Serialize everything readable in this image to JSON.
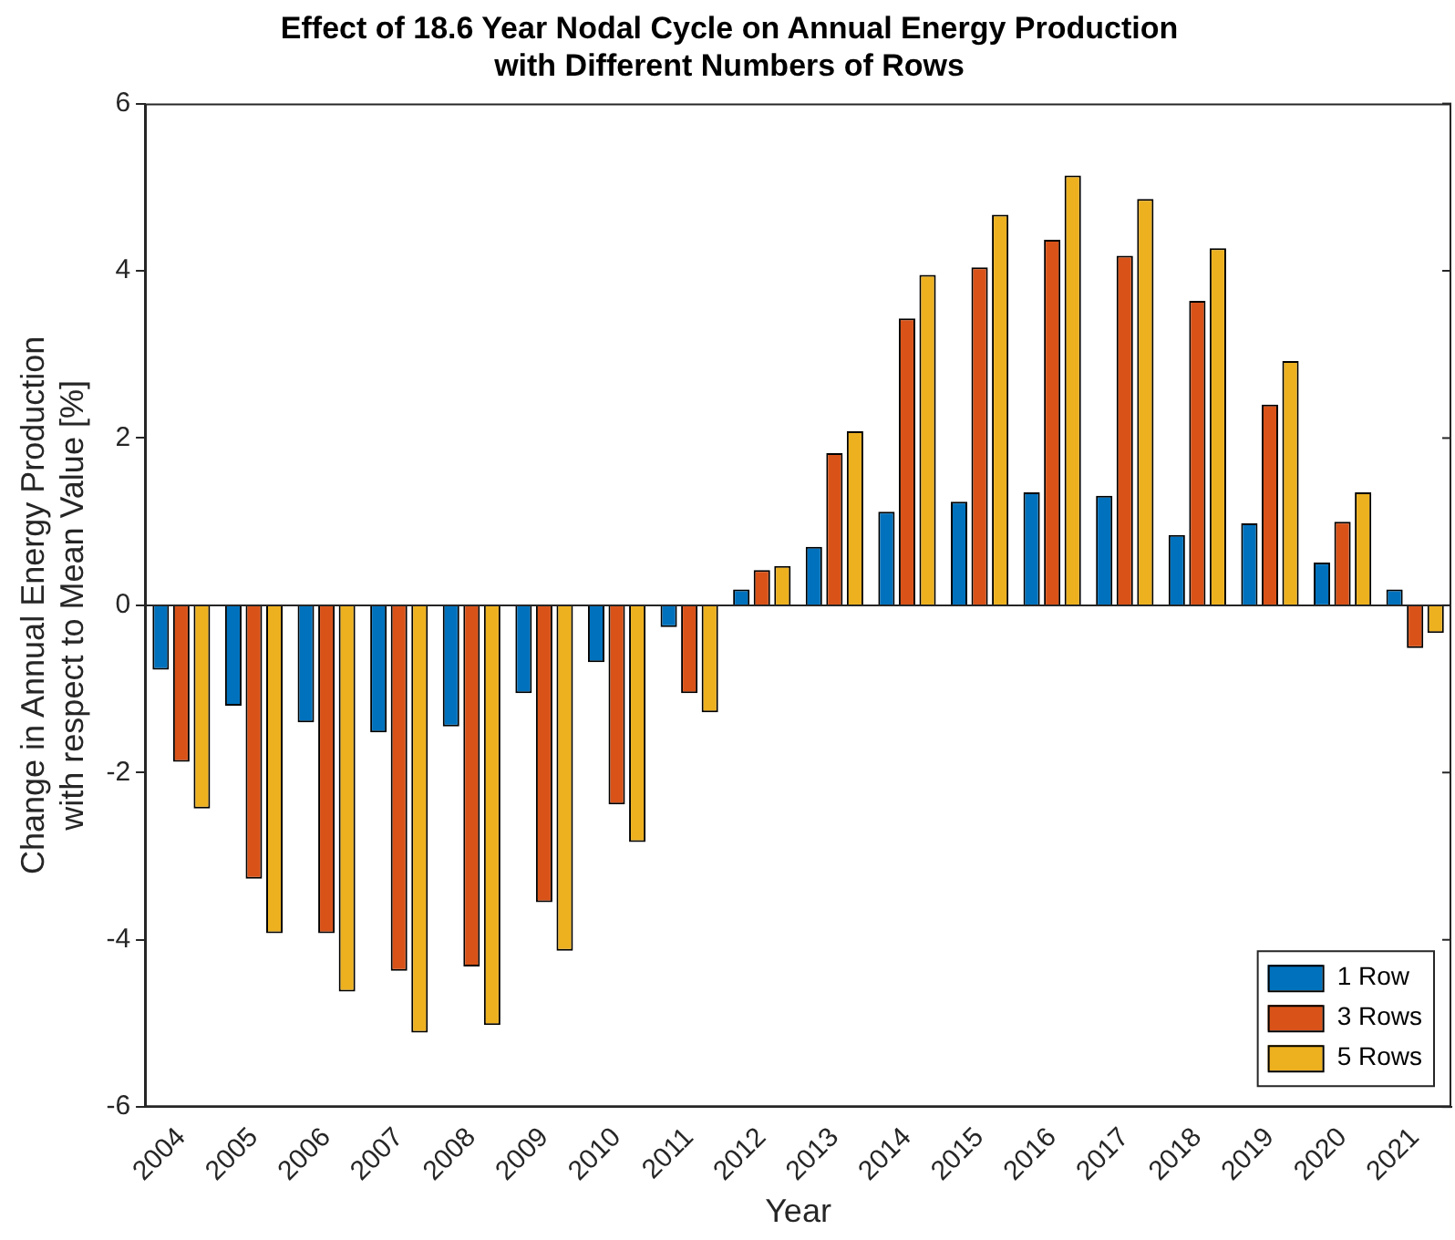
{
  "chart_data": {
    "type": "bar",
    "title": "Effect of 18.6 Year Nodal Cycle on Annual Energy Production\nwith Different Numbers of Rows",
    "xlabel": "Year",
    "ylabel": "Change in Annual Energy Production\nwith respect to Mean Value [%]",
    "categories": [
      "2004",
      "2005",
      "2006",
      "2007",
      "2008",
      "2009",
      "2010",
      "2011",
      "2012",
      "2013",
      "2014",
      "2015",
      "2016",
      "2017",
      "2018",
      "2019",
      "2020",
      "2021"
    ],
    "series": [
      {
        "name": "1 Row",
        "color": "#0072bd",
        "values": [
          -0.77,
          -1.2,
          -1.4,
          -1.52,
          -1.45,
          -1.05,
          -0.68,
          -0.26,
          0.19,
          0.7,
          1.12,
          1.24,
          1.35,
          1.31,
          0.84,
          0.98,
          0.51,
          0.19
        ]
      },
      {
        "name": "3 Rows",
        "color": "#d95319",
        "values": [
          -1.87,
          -3.27,
          -3.92,
          -4.37,
          -4.32,
          -3.55,
          -2.38,
          -1.05,
          0.42,
          1.82,
          3.43,
          4.04,
          4.37,
          4.18,
          3.64,
          2.4,
          1.0,
          -0.51
        ]
      },
      {
        "name": "5 Rows",
        "color": "#edb120",
        "values": [
          -2.43,
          -3.92,
          -4.62,
          -5.11,
          -5.02,
          -4.13,
          -2.83,
          -1.28,
          0.47,
          2.08,
          3.95,
          4.67,
          5.14,
          4.86,
          4.27,
          2.92,
          1.35,
          -0.33
        ]
      }
    ],
    "ylim": [
      -6,
      6
    ],
    "yticks": [
      -6,
      -4,
      -2,
      0,
      2,
      4,
      6
    ],
    "legend": "bottom right"
  }
}
